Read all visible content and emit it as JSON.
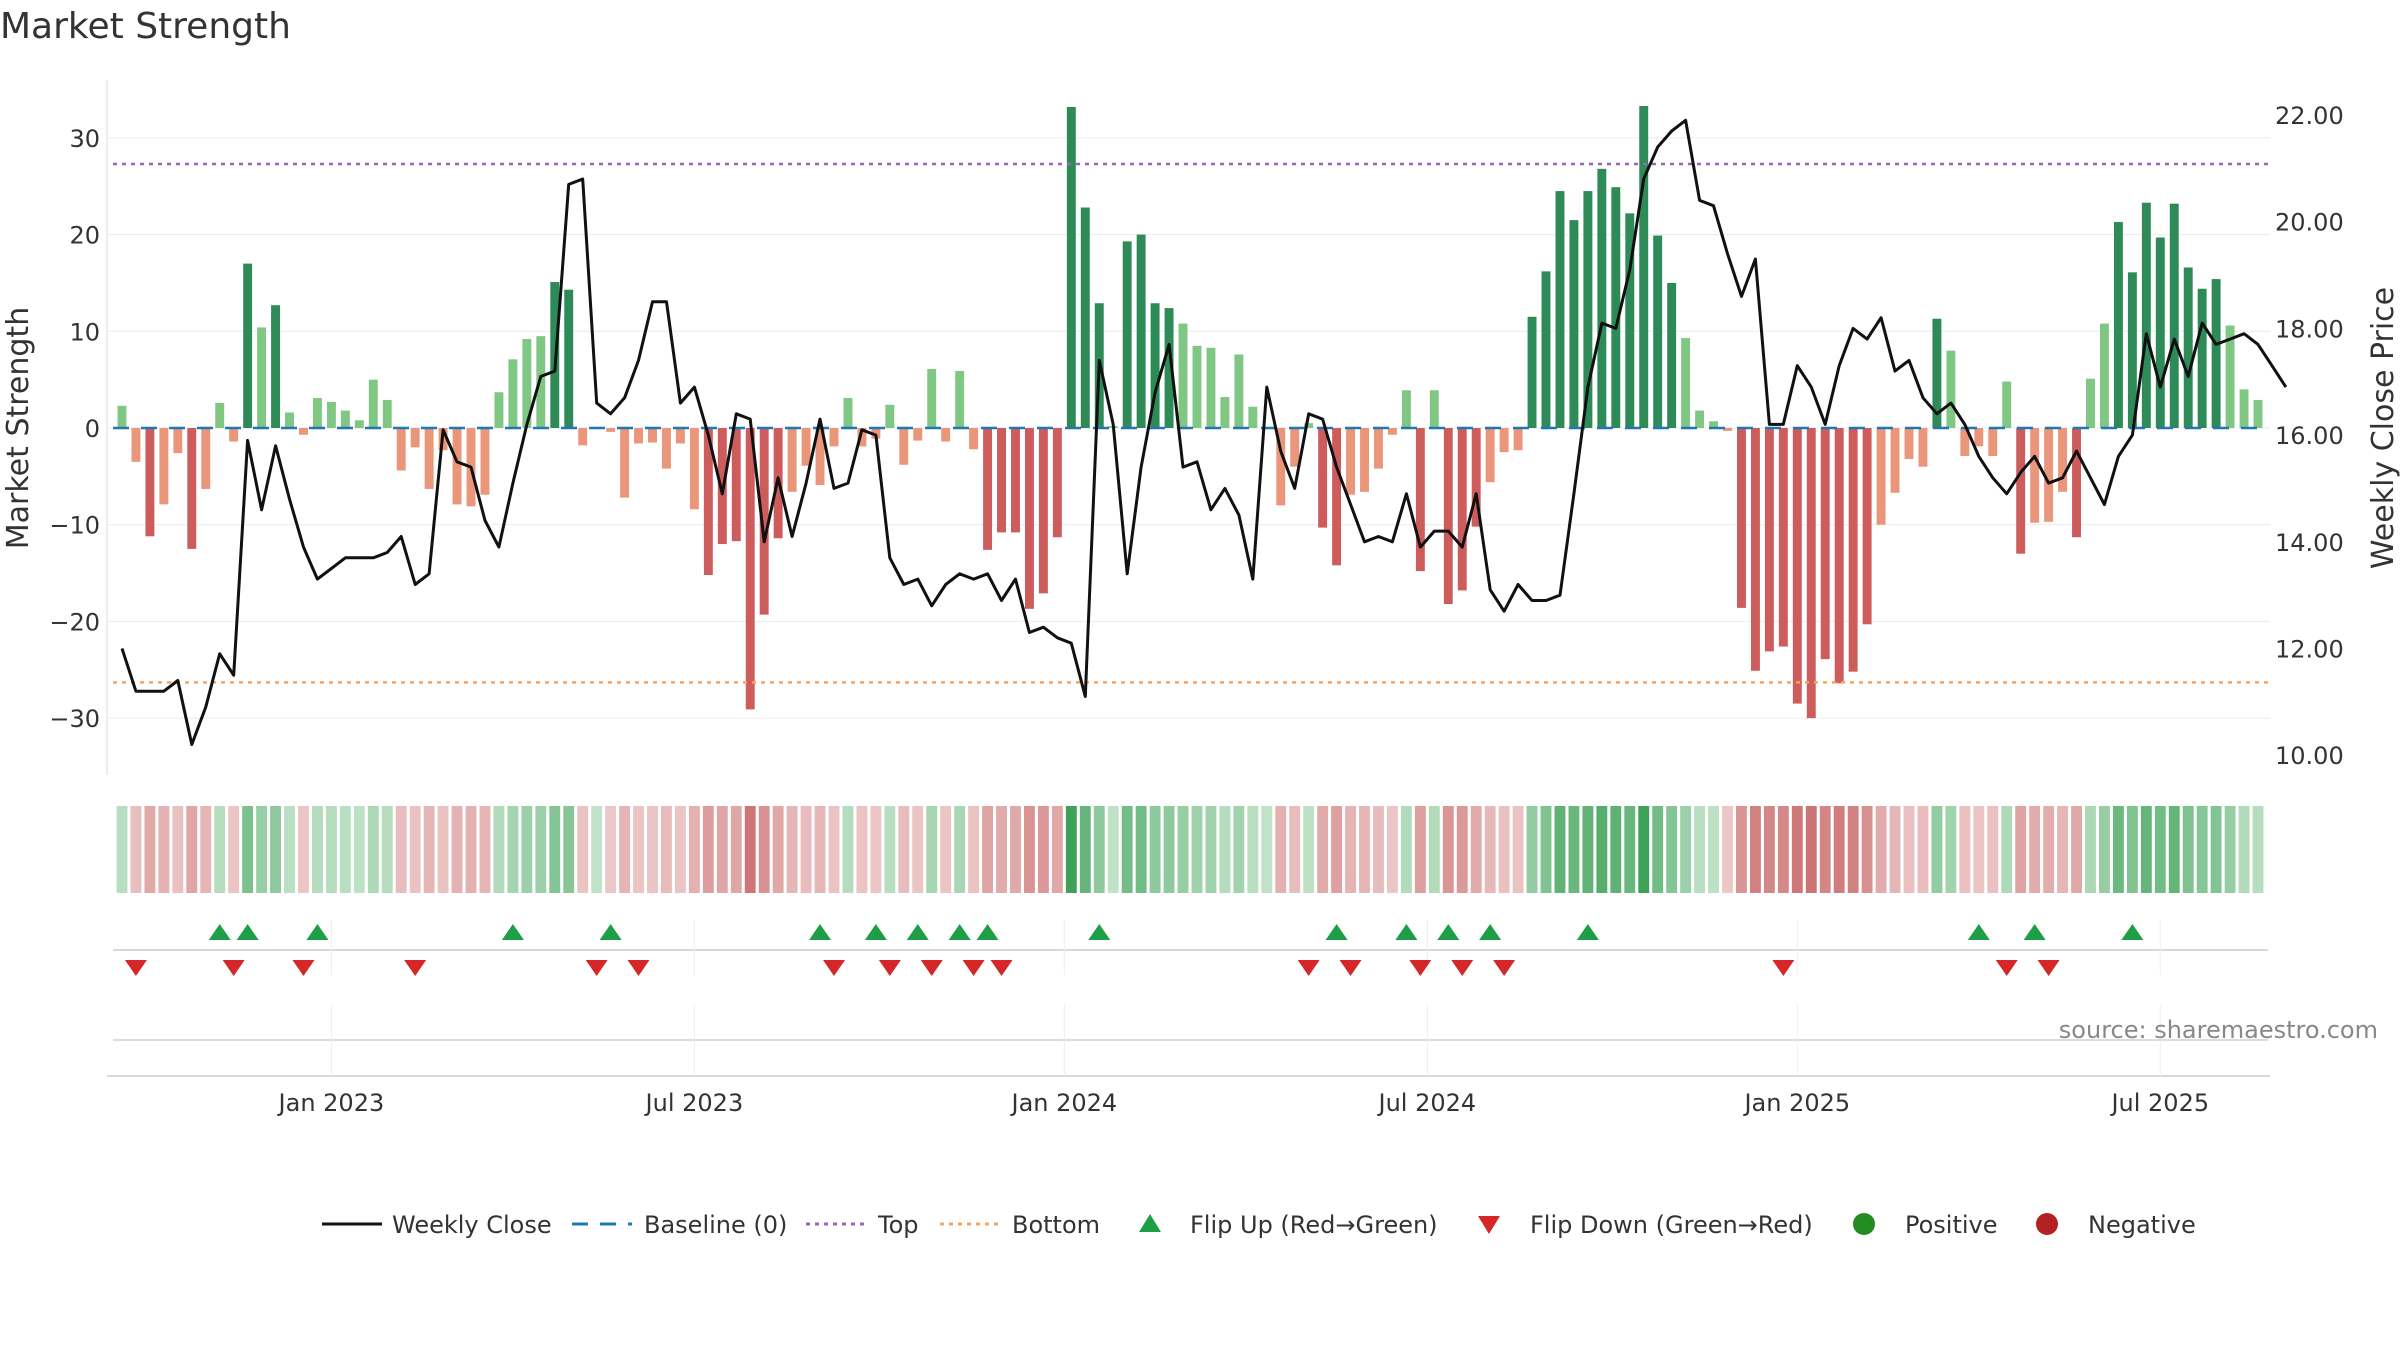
{
  "chart_data": {
    "type": "bar",
    "title": "Market Strength",
    "ylabel": "Market Strength",
    "y2label": "Weekly Close Price",
    "ylim": [
      -36,
      36
    ],
    "y2lim": [
      9.4,
      23.0
    ],
    "yticks": [
      30,
      20,
      10,
      0,
      -10,
      -20,
      -30
    ],
    "ytick_labels": [
      "30",
      "20",
      "10",
      "0",
      "−10",
      "−20",
      "−30"
    ],
    "y2ticks": [
      22,
      20,
      18,
      16,
      14,
      12,
      10
    ],
    "y2tick_labels": [
      "22.00",
      "20.00",
      "18.00",
      "16.00",
      "14.00",
      "12.00",
      "10.00"
    ],
    "xticks": [
      {
        "label": "Jan 2023",
        "index": 15
      },
      {
        "label": "Jul 2023",
        "index": 41
      },
      {
        "label": "Jan 2024",
        "index": 67.5
      },
      {
        "label": "Jul 2024",
        "index": 93.5
      },
      {
        "label": "Jan 2025",
        "index": 120
      },
      {
        "label": "Jul 2025",
        "index": 146
      }
    ],
    "top_level": 27.3,
    "bottom_level": -26.3,
    "strength": [
      2.3,
      -3.5,
      -11.2,
      -7.9,
      -2.6,
      -12.5,
      -6.3,
      2.6,
      -1.4,
      17.0,
      10.4,
      12.7,
      1.6,
      -0.7,
      3.1,
      2.7,
      1.8,
      0.8,
      5.0,
      2.9,
      -4.4,
      -2.0,
      -6.3,
      -2.3,
      -7.9,
      -8.1,
      -6.9,
      3.7,
      7.1,
      9.2,
      9.5,
      15.1,
      14.3,
      -1.8,
      0.0,
      -0.4,
      -7.2,
      -1.6,
      -1.5,
      -4.2,
      -1.6,
      -8.4,
      -15.2,
      -12.0,
      -11.7,
      -29.1,
      -19.3,
      -11.4,
      -6.6,
      -3.9,
      -5.9,
      -1.9,
      3.1,
      -1.9,
      -1.1,
      2.4,
      -3.8,
      -1.3,
      6.1,
      -1.4,
      5.9,
      -2.2,
      -12.6,
      -10.8,
      -10.8,
      -18.7,
      -17.1,
      -11.3,
      33.2,
      22.8,
      12.9,
      0.2,
      19.3,
      20.0,
      12.9,
      12.4,
      10.8,
      8.5,
      8.3,
      3.2,
      7.6,
      2.2,
      0.1,
      -8.0,
      -4.0,
      0.5,
      -10.3,
      -14.2,
      -6.9,
      -6.6,
      -4.2,
      -0.7,
      3.9,
      -14.8,
      3.9,
      -18.2,
      -16.8,
      -10.2,
      -5.6,
      -2.5,
      -2.3,
      11.5,
      16.2,
      24.5,
      21.5,
      24.5,
      26.8,
      24.9,
      22.2,
      33.3,
      19.9,
      15.0,
      9.3,
      1.8,
      0.7,
      -0.3,
      -18.6,
      -25.1,
      -23.1,
      -22.6,
      -28.5,
      -30.0,
      -23.9,
      -26.4,
      -25.2,
      -20.3,
      -10.0,
      -6.7,
      -3.2,
      -4.0,
      11.3,
      8.0,
      -2.9,
      -1.9,
      -2.9,
      4.8,
      -13.0,
      -9.8,
      -9.7,
      -6.6,
      -11.3,
      5.1,
      10.8,
      21.3,
      16.1,
      23.3,
      19.7,
      23.2,
      16.6,
      14.4,
      15.4,
      10.6,
      4.0,
      2.9
    ],
    "close": [
      12.0,
      11.2,
      11.2,
      11.2,
      11.4,
      10.2,
      10.9,
      11.9,
      11.5,
      15.9,
      14.6,
      15.8,
      14.8,
      13.9,
      13.3,
      13.5,
      13.7,
      13.7,
      13.7,
      13.8,
      14.1,
      13.2,
      13.4,
      16.1,
      15.5,
      15.4,
      14.4,
      13.9,
      15.1,
      16.2,
      17.1,
      17.2,
      20.7,
      20.8,
      16.6,
      16.4,
      16.7,
      17.4,
      18.5,
      18.5,
      16.6,
      16.9,
      16.0,
      14.9,
      16.4,
      16.3,
      14.0,
      15.2,
      14.1,
      15.1,
      16.3,
      15.0,
      15.1,
      16.1,
      16.0,
      13.7,
      13.2,
      13.3,
      12.8,
      13.2,
      13.4,
      13.3,
      13.4,
      12.9,
      13.3,
      12.3,
      12.4,
      12.2,
      12.1,
      11.1,
      17.4,
      16.2,
      13.4,
      15.4,
      16.8,
      17.7,
      15.4,
      15.5,
      14.6,
      15.0,
      14.5,
      13.3,
      16.9,
      15.7,
      15.0,
      16.4,
      16.3,
      15.4,
      14.7,
      14.0,
      14.1,
      14.0,
      14.9,
      13.9,
      14.2,
      14.2,
      13.9,
      14.9,
      13.1,
      12.7,
      13.2,
      12.9,
      12.9,
      13.0,
      14.9,
      16.9,
      18.1,
      18.0,
      19.1,
      20.8,
      21.4,
      21.7,
      21.9,
      20.4,
      20.3,
      19.4,
      18.6,
      19.3,
      16.2,
      16.2,
      17.3,
      16.9,
      16.2,
      17.3,
      18.0,
      17.8,
      18.2,
      17.2,
      17.4,
      16.7,
      16.4,
      16.6,
      16.2,
      15.6,
      15.2,
      14.9,
      15.3,
      15.6,
      15.1,
      15.2,
      15.7,
      15.2,
      14.7,
      15.6,
      16.0,
      17.9,
      16.9,
      17.8,
      17.1,
      18.1,
      17.7,
      17.8,
      17.9,
      17.7,
      17.3,
      16.9
    ],
    "flip_up": [
      7,
      9,
      14,
      28,
      35,
      50,
      54,
      57,
      60,
      62,
      70,
      87,
      92,
      95,
      98,
      105,
      133,
      137,
      144
    ],
    "flip_down": [
      1,
      8,
      13,
      21,
      34,
      37,
      51,
      55,
      58,
      61,
      63,
      85,
      88,
      93,
      96,
      99,
      119,
      135,
      138
    ],
    "legend": [
      "Weekly Close",
      "Baseline (0)",
      "Top",
      "Bottom",
      "Flip Up (Red→Green)",
      "Flip Down (Green→Red)",
      "Positive",
      "Negative"
    ],
    "source_note": "source: sharemaestro.com",
    "colors": {
      "pos_strong": "#2e8b57",
      "pos_light": "#81c784",
      "neg_strong": "#cd5c5c",
      "neg_light": "#e9967a",
      "close_line": "#111111",
      "baseline": "#1f77b4",
      "top_line": "#9467bd",
      "bottom_line": "#f4a460",
      "flip_up": "#1e9e46",
      "flip_down": "#d62728",
      "positive_dot": "#228b22",
      "negative_dot": "#b22222"
    }
  }
}
